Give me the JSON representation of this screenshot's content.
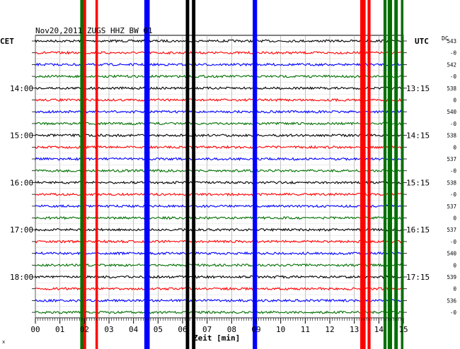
{
  "chart_data": {
    "type": "line",
    "title": "Nov20,2011   ZUGS HHZ BW 01",
    "xlabel": "Zeit [min]",
    "x_ticks": [
      "00",
      "01",
      "02",
      "03",
      "04",
      "05",
      "06",
      "07",
      "08",
      "09",
      "10",
      "11",
      "12",
      "13",
      "14",
      "15"
    ],
    "xlim": [
      0,
      15
    ],
    "left_axis_label": "CET",
    "right_axis_label": "UTC",
    "dc_header": "DC",
    "left_time_labels": [
      {
        "row": 4,
        "text": "14:00"
      },
      {
        "row": 8,
        "text": "15:00"
      },
      {
        "row": 12,
        "text": "16:00"
      },
      {
        "row": 16,
        "text": "17:00"
      },
      {
        "row": 20,
        "text": "18:00"
      }
    ],
    "right_time_labels": [
      {
        "row": 4,
        "text": "13:15"
      },
      {
        "row": 8,
        "text": "14:15"
      },
      {
        "row": 12,
        "text": "15:15"
      },
      {
        "row": 16,
        "text": "16:15"
      },
      {
        "row": 20,
        "text": "17:15"
      }
    ],
    "dc_values": [
      "543",
      "-0",
      "542",
      "-0",
      "538",
      "0",
      "540",
      "-0",
      "538",
      "0",
      "537",
      "-0",
      "538",
      "-0",
      "537",
      "0",
      "537",
      "-0",
      "540",
      "0",
      "539",
      "0",
      "536",
      "-0"
    ],
    "series_colors": [
      "#000000",
      "#ff0000",
      "#0000ff",
      "#007000"
    ],
    "trace_count": 24,
    "event_bands": [
      {
        "x": 1.95,
        "color": "#007000",
        "width_min": 0.24
      },
      {
        "x": 2.0,
        "color": "#ff0000",
        "width_min": 0.12
      },
      {
        "x": 2.5,
        "color": "#ff0000",
        "width_min": 0.1
      },
      {
        "x": 4.55,
        "color": "#0000ff",
        "width_min": 0.22
      },
      {
        "x": 6.2,
        "color": "#000000",
        "width_min": 0.14
      },
      {
        "x": 6.45,
        "color": "#000000",
        "width_min": 0.14
      },
      {
        "x": 8.95,
        "color": "#0000ff",
        "width_min": 0.18
      },
      {
        "x": 13.35,
        "color": "#ff0000",
        "width_min": 0.22
      },
      {
        "x": 13.6,
        "color": "#ff0000",
        "width_min": 0.12
      },
      {
        "x": 14.25,
        "color": "#007000",
        "width_min": 0.12
      },
      {
        "x": 14.45,
        "color": "#007000",
        "width_min": 0.18
      },
      {
        "x": 14.7,
        "color": "#007000",
        "width_min": 0.14
      },
      {
        "x": 14.95,
        "color": "#007000",
        "width_min": 0.1
      }
    ]
  }
}
